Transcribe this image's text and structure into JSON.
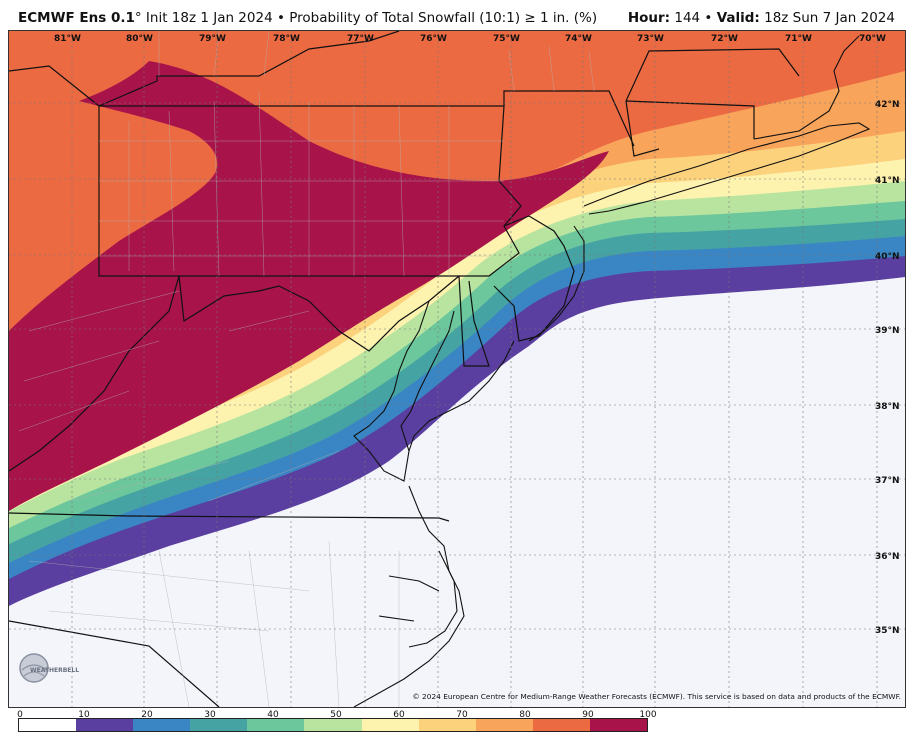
{
  "header": {
    "model": "ECMWF Ens 0.1",
    "degree": "°",
    "init": " Init 18z 1 Jan 2024",
    "bullet": " • ",
    "product": "Probability of Total Snowfall (10:1) ≥ 1 in. (%)",
    "hour_label": "Hour:",
    "hour_value": " 144",
    "valid_label": "Valid:",
    "valid_value": " 18z Sun 7 Jan 2024"
  },
  "map": {
    "longitude_labels": [
      "81°W",
      "80°W",
      "79°W",
      "78°W",
      "77°W",
      "76°W",
      "75°W",
      "74°W",
      "73°W",
      "72°W",
      "71°W",
      "70°W"
    ],
    "latitude_labels": [
      "42°N",
      "41°N",
      "40°N",
      "39°N",
      "38°N",
      "37°N",
      "36°N",
      "35°N"
    ],
    "logo_text": "WEATHERBELL",
    "credit": "© 2024 European Centre for Medium-Range Weather Forecasts (ECMWF). This service is based on data and products of the ECMWF."
  },
  "legend": {
    "ticks": [
      "0",
      "10",
      "20",
      "30",
      "40",
      "50",
      "60",
      "70",
      "80",
      "90",
      "100"
    ],
    "colors": [
      "#ffffff",
      "#5a3fa0",
      "#3a86c4",
      "#46a3a3",
      "#6cc79c",
      "#b9e4a0",
      "#fdf2ae",
      "#fcd27d",
      "#f8a45a",
      "#ec6a42",
      "#a8144a"
    ]
  }
}
